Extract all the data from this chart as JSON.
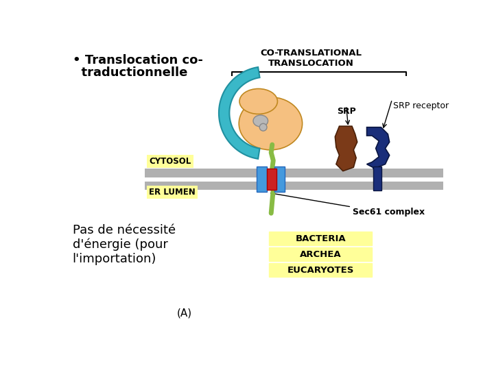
{
  "bg_color": "#ffffff",
  "title_text": "CO-TRANSLATIONAL\nTRANSLOCATION",
  "bullet_line1": "• Translocation co-",
  "bullet_line2": "  traductionnelle",
  "cytosol_label": "CYTOSOL",
  "er_lumen_label": "ER LUMEN",
  "srp_label": "SRP",
  "srp_receptor_label": "SRP receptor",
  "sec61_label": "Sec61 complex",
  "bottom_text": "Pas de nécessité\nd'énergie (pour\nl'importation)",
  "caption": "(A)",
  "bacteria_label": "BACTERIA",
  "archea_label": "ARCHEA",
  "eucaryotes_label": "EUCARYOTES",
  "yellow_bg": "#ffff99",
  "membrane_color": "#b0b0b0",
  "ribosome_color": "#f5c080",
  "ribosome_edge": "#c08820",
  "srp_teal": "#3ab8c8",
  "srp_receptor_brown": "#7b3a18",
  "srp_receptor_blue": "#1a2e7a",
  "channel_blue": "#4499dd",
  "channel_red": "#cc2222",
  "peptide_color": "#88bb44",
  "gray_knob": "#b8b8b8",
  "gray_knob_edge": "#888888"
}
